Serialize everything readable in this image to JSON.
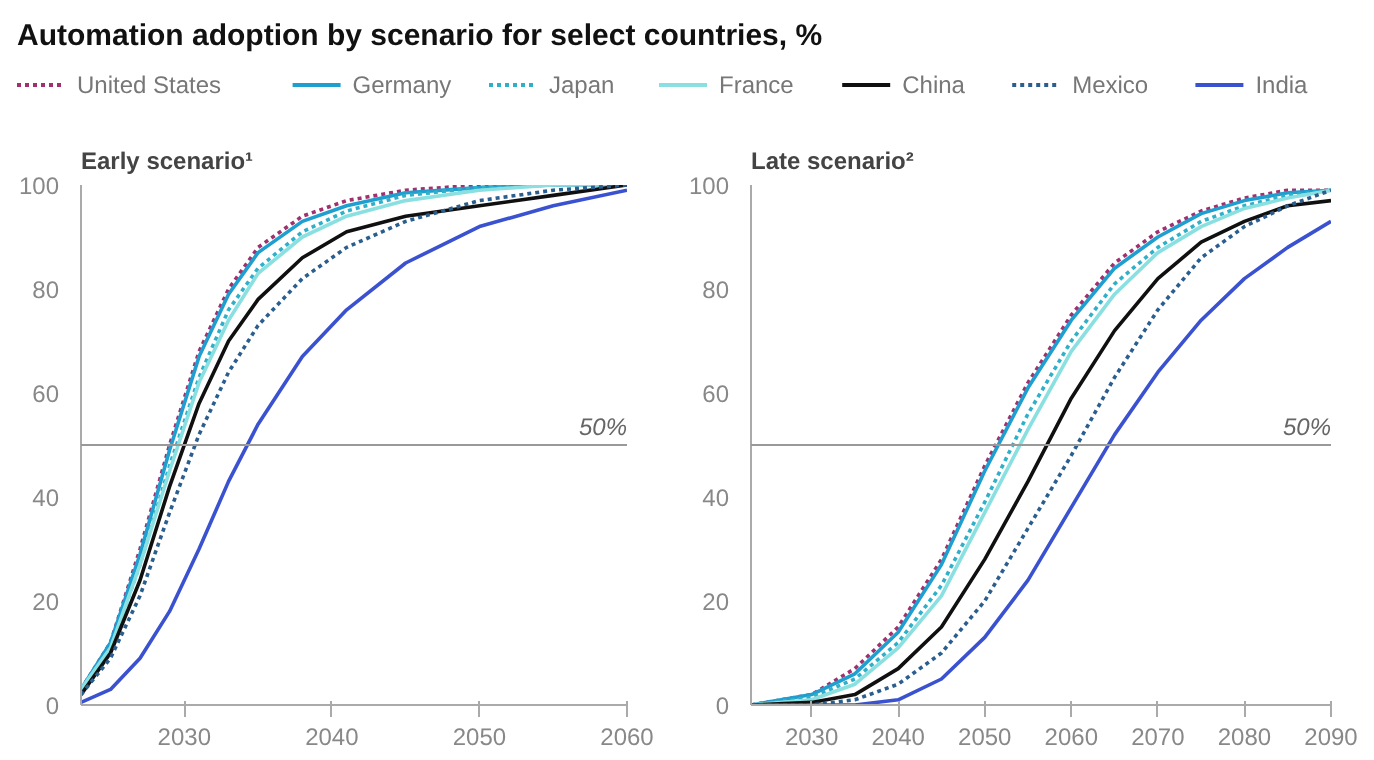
{
  "chart_data": [
    {
      "type": "line",
      "title": "Automation adoption by scenario for select countries, %",
      "subtitle": "Early scenario¹",
      "x": [
        2023,
        2025,
        2027,
        2029,
        2031,
        2033,
        2035,
        2038,
        2041,
        2045,
        2050,
        2055,
        2060
      ],
      "xlim": [
        2023,
        2060
      ],
      "xticks": [
        2030,
        2040,
        2050,
        2060
      ],
      "ylim": [
        0,
        100
      ],
      "yticks": [
        0,
        20,
        40,
        60,
        80,
        100
      ],
      "grid": false,
      "legend": "top",
      "ref_lines": [
        {
          "axis": "y",
          "value": 50,
          "label": "50%"
        }
      ],
      "series": [
        {
          "name": "United States",
          "color": "#a0306e",
          "line_style": "dotted",
          "values": [
            3,
            12,
            30,
            50,
            68,
            80,
            88,
            94,
            97,
            99,
            100,
            100,
            100
          ]
        },
        {
          "name": "Germany",
          "color": "#1f9ed0",
          "line_style": "solid",
          "values": [
            3,
            12,
            29,
            49,
            67,
            79,
            87,
            93,
            96,
            98.5,
            99.5,
            100,
            100
          ]
        },
        {
          "name": "Japan",
          "color": "#2fb0c8",
          "line_style": "dotted",
          "values": [
            3,
            11,
            27,
            46,
            63,
            76,
            84,
            91,
            95,
            98,
            99.5,
            100,
            100
          ]
        },
        {
          "name": "France",
          "color": "#8ae0e0",
          "line_style": "solid",
          "values": [
            3,
            11,
            27,
            45,
            62,
            74,
            83,
            90,
            94,
            97,
            99,
            100,
            100
          ]
        },
        {
          "name": "China",
          "color": "#101010",
          "line_style": "solid",
          "values": [
            2,
            10,
            24,
            42,
            58,
            70,
            78,
            86,
            91,
            94,
            96,
            98,
            100
          ]
        },
        {
          "name": "Mexico",
          "color": "#2a5e8e",
          "line_style": "dotted",
          "values": [
            2,
            9,
            21,
            37,
            52,
            64,
            73,
            82,
            88,
            93,
            97,
            99,
            100
          ]
        },
        {
          "name": "India",
          "color": "#3a52d0",
          "line_style": "solid",
          "values": [
            0.5,
            3,
            9,
            18,
            30,
            43,
            54,
            67,
            76,
            85,
            92,
            96,
            99
          ]
        }
      ]
    },
    {
      "type": "line",
      "subtitle": "Late scenario²",
      "x": [
        2023,
        2030,
        2035,
        2040,
        2045,
        2050,
        2055,
        2060,
        2065,
        2070,
        2075,
        2080,
        2085,
        2090
      ],
      "xlim": [
        2023,
        2090
      ],
      "xticks": [
        2030,
        2040,
        2050,
        2060,
        2070,
        2080,
        2090
      ],
      "ylim": [
        0,
        100
      ],
      "yticks": [
        0,
        20,
        40,
        60,
        80,
        100
      ],
      "grid": false,
      "ref_lines": [
        {
          "axis": "y",
          "value": 50,
          "label": "50%"
        }
      ],
      "series": [
        {
          "color": "#a0306e",
          "line_style": "dotted",
          "values": [
            0,
            2,
            7,
            15,
            28,
            46,
            62,
            75,
            85,
            91,
            95,
            97.5,
            99,
            99
          ]
        },
        {
          "color": "#1f9ed0",
          "line_style": "solid",
          "values": [
            0,
            2,
            6,
            14,
            27,
            45,
            61,
            74,
            84,
            90,
            94.5,
            97,
            98.5,
            99
          ]
        },
        {
          "color": "#2fb0c8",
          "line_style": "dotted",
          "values": [
            0,
            1.5,
            5,
            12,
            23,
            39,
            56,
            70,
            81,
            88,
            93,
            96,
            98,
            99
          ]
        },
        {
          "color": "#8ae0e0",
          "line_style": "solid",
          "values": [
            0,
            1,
            4,
            11,
            21,
            37,
            53,
            68,
            79,
            87,
            92,
            95.5,
            97.5,
            99
          ]
        },
        {
          "color": "#101010",
          "line_style": "solid",
          "values": [
            0,
            0.5,
            2,
            7,
            15,
            28,
            43,
            59,
            72,
            82,
            89,
            93,
            96,
            97
          ]
        },
        {
          "color": "#2a5e8e",
          "line_style": "dotted",
          "values": [
            0,
            0,
            1,
            4,
            10,
            20,
            34,
            48,
            63,
            76,
            86,
            92,
            96,
            99
          ]
        },
        {
          "color": "#3a52d0",
          "line_style": "solid",
          "values": [
            0,
            0,
            0,
            1,
            5,
            13,
            24,
            38,
            52,
            64,
            74,
            82,
            88,
            93
          ]
        }
      ]
    }
  ]
}
